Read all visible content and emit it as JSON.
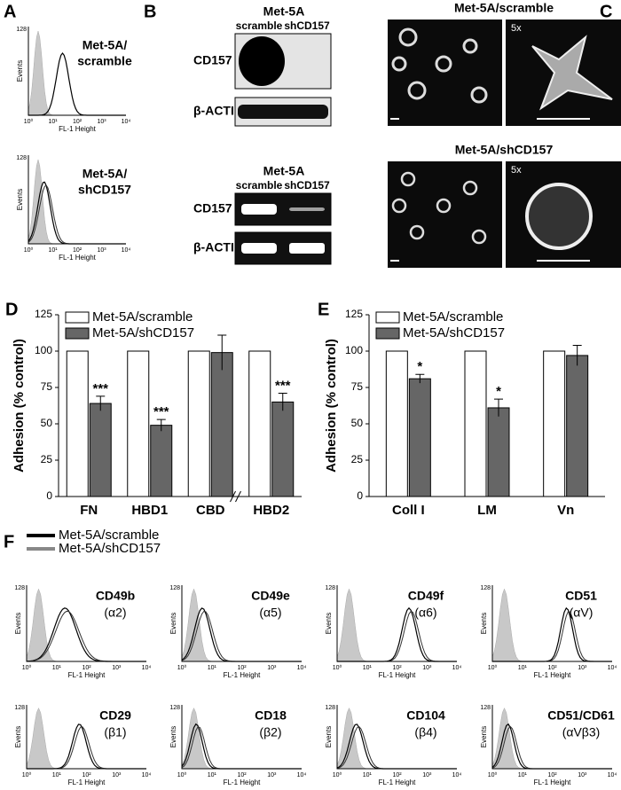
{
  "chart_data": [
    {
      "type": "bar",
      "letter": "D",
      "y_label": "Adhesion (% control)",
      "categories": [
        "FN",
        "HBD1",
        "CBD",
        "HBD2"
      ],
      "series": [
        {
          "name": "Met-5A/scramble",
          "color": "#ffffff",
          "values": [
            100,
            100,
            100,
            100
          ]
        },
        {
          "name": "Met-5A/shCD157",
          "color": "#666666",
          "values": [
            64,
            49,
            99,
            65
          ],
          "errors": [
            5,
            4,
            12,
            6
          ],
          "value_labels": [
            "***",
            "***",
            null,
            "***"
          ]
        }
      ],
      "ylim": [
        0,
        125
      ],
      "yticks": [
        0,
        25,
        50,
        75,
        100,
        125
      ],
      "legend": "top-left"
    },
    {
      "type": "bar",
      "letter": "E",
      "y_label": "Adhesion (% control)",
      "categories": [
        "Coll I",
        "LM",
        "Vn"
      ],
      "series": [
        {
          "name": "Met-5A/scramble",
          "color": "#ffffff",
          "values": [
            100,
            100,
            100
          ]
        },
        {
          "name": "Met-5A/shCD157",
          "color": "#666666",
          "values": [
            81,
            61,
            97
          ],
          "errors": [
            3,
            6,
            7
          ],
          "value_labels": [
            "*",
            "*",
            null
          ]
        }
      ],
      "ylim": [
        0,
        125
      ],
      "yticks": [
        0,
        25,
        50,
        75,
        100,
        125
      ],
      "legend": "top-left"
    }
  ],
  "histogram_axis": {
    "y_max": "128",
    "y_label": "Events",
    "x_label": "FL-1 Height",
    "x_ticks": [
      "10⁰",
      "10¹",
      "10²",
      "10³",
      "10⁴"
    ]
  },
  "panel_a": {
    "letter": "A",
    "histograms": [
      {
        "line1": "Met-5A/",
        "line2": "scramble"
      },
      {
        "line1": "Met-5A/",
        "line2": "shCD157"
      }
    ]
  },
  "panel_b": {
    "letter": "B",
    "blots": [
      {
        "title": "Met-5A",
        "lanes": [
          "scramble",
          "shCD157"
        ],
        "rows": [
          "CD157",
          "β-ACTIN"
        ]
      },
      {
        "title": "Met-5A",
        "lanes": [
          "scramble",
          "shCD157"
        ],
        "rows": [
          "CD157",
          "β-ACTIN"
        ]
      }
    ]
  },
  "panel_c": {
    "letter": "C",
    "rows": [
      {
        "title": "Met-5A/scramble",
        "zoom": "5x"
      },
      {
        "title": "Met-5A/shCD157",
        "zoom": "5x"
      }
    ]
  },
  "panel_f": {
    "letter": "F",
    "legend": [
      "Met-5A/scramble",
      "Met-5A/shCD157"
    ],
    "histograms": [
      {
        "name": "CD49b",
        "subunit": "(α2)"
      },
      {
        "name": "CD49e",
        "subunit": "(α5)"
      },
      {
        "name": "CD49f",
        "subunit": "(α6)"
      },
      {
        "name": "CD51",
        "subunit": "(αV)"
      },
      {
        "name": "CD29",
        "subunit": "(β1)"
      },
      {
        "name": "CD18",
        "subunit": "(β2)"
      },
      {
        "name": "CD104",
        "subunit": "(β4)"
      },
      {
        "name": "CD51/CD61",
        "subunit": "(αVβ3)"
      }
    ]
  }
}
